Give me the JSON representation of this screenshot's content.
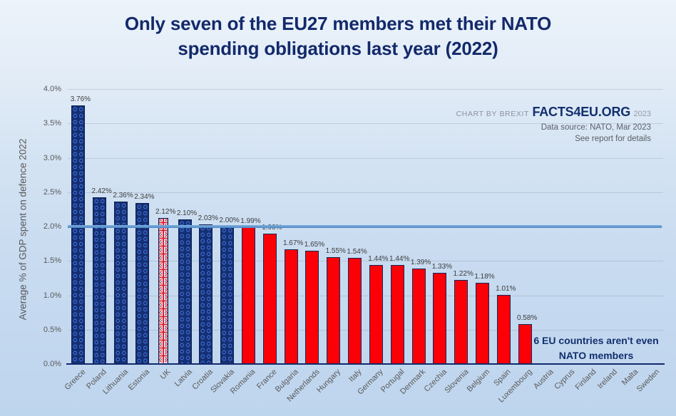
{
  "title": {
    "line1": "Only seven of the EU27 members met their NATO",
    "line2": "spending obligations last year (2022)"
  },
  "credit": {
    "prefix": "CHART BY BREXIT",
    "brand": "FACTS4EU.ORG",
    "year": "2023",
    "source": "Data source: NATO, Mar 2023",
    "note": "See report for details"
  },
  "annotation": {
    "line1": "6 EU countries aren't even",
    "line2": "NATO members"
  },
  "chart_data": {
    "type": "bar",
    "title": "Only seven of the EU27 members met their NATO spending obligations last year (2022)",
    "xlabel": "",
    "ylabel": "Average % of GDP spent on defence 2022",
    "ylim": [
      0,
      4.0
    ],
    "ytick_values": [
      0.0,
      0.5,
      1.0,
      1.5,
      2.0,
      2.5,
      3.0,
      3.5,
      4.0
    ],
    "ytick_labels": [
      "0.0%",
      "0.5%",
      "1.0%",
      "1.5%",
      "2.0%",
      "2.5%",
      "3.0%",
      "3.5%",
      "4.0%"
    ],
    "grid": "horizontal",
    "legend": "none",
    "target_line_value": 2.0,
    "categories": [
      "Greece",
      "Poland",
      "Lithuania",
      "Estonia",
      "UK",
      "Latvia",
      "Croatia",
      "Slovakia",
      "Romania",
      "France",
      "Bulgaria",
      "Netherlands",
      "Hungary",
      "Italy",
      "Germany",
      "Portugal",
      "Denmark",
      "Czechia",
      "Slovenia",
      "Belgium",
      "Spain",
      "Luxembourg",
      "Austria",
      "Cyprus",
      "Finland",
      "Ireland",
      "Malta",
      "Sweden"
    ],
    "values": [
      3.76,
      2.42,
      2.36,
      2.34,
      2.12,
      2.1,
      2.03,
      2.0,
      1.99,
      1.9,
      1.67,
      1.65,
      1.55,
      1.54,
      1.44,
      1.44,
      1.39,
      1.33,
      1.22,
      1.18,
      1.01,
      0.58,
      null,
      null,
      null,
      null,
      null,
      null
    ],
    "value_labels": [
      "3.76%",
      "2.42%",
      "2.36%",
      "2.34%",
      "2.12%",
      "2.10%",
      "2.03%",
      "2.00%",
      "1.99%",
      "1.90%",
      "1.67%",
      "1.65%",
      "1.55%",
      "1.54%",
      "1.44%",
      "1.44%",
      "1.39%",
      "1.33%",
      "1.22%",
      "1.18%",
      "1.01%",
      "0.58%",
      null,
      null,
      null,
      null,
      null,
      null
    ],
    "bar_styles": [
      "blue",
      "blue",
      "blue",
      "blue",
      "uk",
      "blue",
      "blue",
      "blue",
      "red",
      "red",
      "red",
      "red",
      "red",
      "red",
      "red",
      "red",
      "red",
      "red",
      "red",
      "red",
      "red",
      "red",
      null,
      null,
      null,
      null,
      null,
      null
    ],
    "colors": {
      "met_target_bar": "#142f74",
      "missed_target_bar": "#fb0006",
      "bar_outline": "#0c1f4e",
      "target_line": "#5f97cf",
      "axis_line": "#13296b",
      "title_text": "#13296b",
      "tick_text": "#595959",
      "value_text": "#3d3d3d"
    }
  }
}
